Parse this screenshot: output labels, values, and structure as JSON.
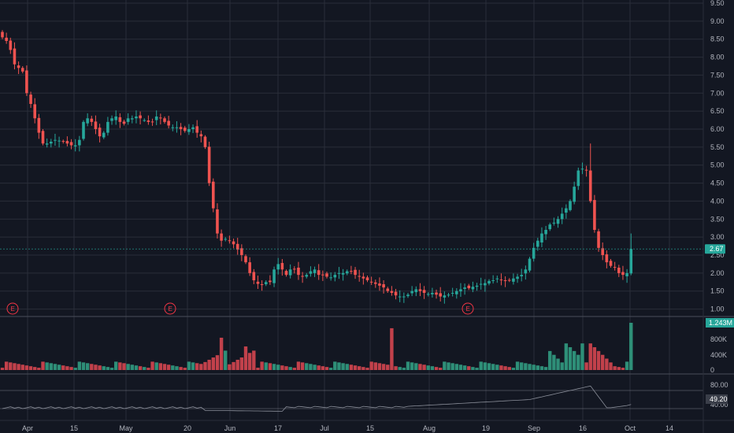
{
  "colors": {
    "background": "#131722",
    "grid": "#2a2e39",
    "up": "#26a69a",
    "down": "#ef5350",
    "up_volume": "#2e8f78",
    "down_volume": "#c2414b",
    "price_line": "#26a69a",
    "rsi_line": "#8a8e99",
    "earnings": "#f23645"
  },
  "price_axis": {
    "ticks": [
      "9.50",
      "9.00",
      "8.50",
      "8.00",
      "7.50",
      "7.00",
      "6.50",
      "6.00",
      "5.50",
      "5.00",
      "4.50",
      "4.00",
      "3.50",
      "3.00",
      "2.50",
      "2.00",
      "1.50",
      "1.00"
    ]
  },
  "last_price_label": "2.67",
  "volume_axis": {
    "ticks": [
      "800K",
      "400K",
      "0"
    ],
    "last_label": "1.243M"
  },
  "rsi_axis": {
    "ticks": [
      "80.00",
      "40.00"
    ],
    "last_label": "49.20"
  },
  "time_axis": {
    "ticks": [
      "Apr",
      "15",
      "May",
      "20",
      "Jun",
      "17",
      "Jul",
      "15",
      "Aug",
      "19",
      "Sep",
      "16",
      "Oct",
      "14"
    ]
  },
  "earnings_markers": [
    "E",
    "E",
    "E"
  ],
  "chart_data": [
    {
      "type": "candlestick",
      "ylim": [
        0.75,
        9.5
      ],
      "last_price": 2.67,
      "grid": true,
      "candles": []
    },
    {
      "type": "bar",
      "ylim": [
        0,
        1243000
      ],
      "values": [],
      "grid": true
    },
    {
      "type": "line",
      "ylim": [
        30,
        100
      ],
      "levels": [
        80,
        40
      ],
      "last_value": 49.2,
      "values": [],
      "grid": true
    }
  ]
}
